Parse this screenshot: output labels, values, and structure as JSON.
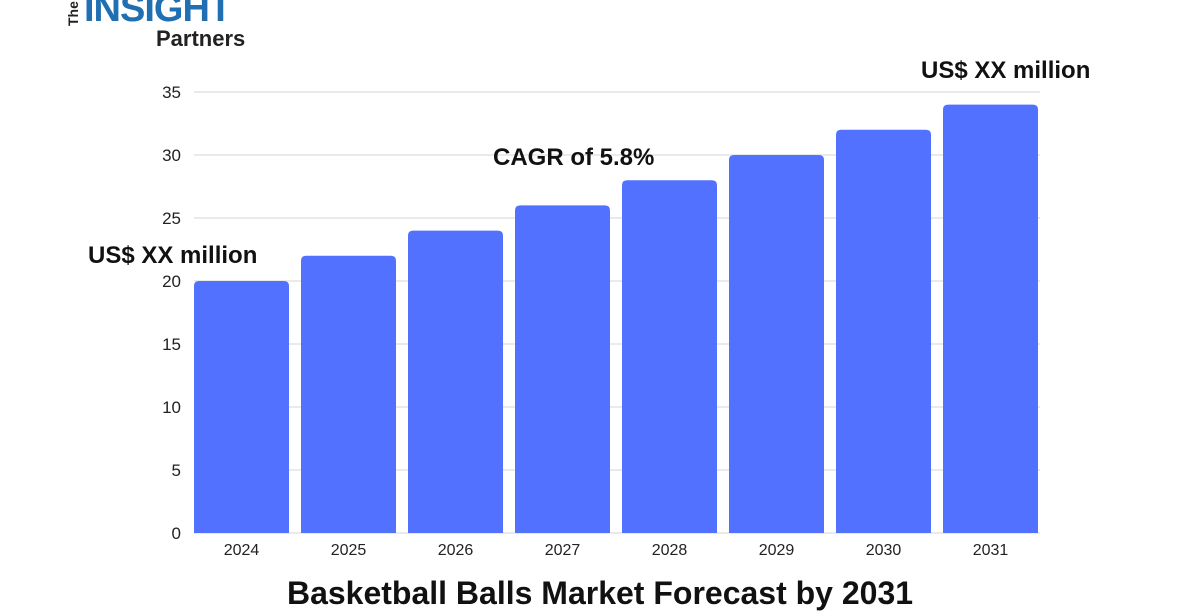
{
  "logo": {
    "the": "The",
    "insight": "INSIGHT",
    "partners": "Partners"
  },
  "chart_data": {
    "type": "bar",
    "title": "Basketball Balls Market Forecast by 2031",
    "categories": [
      "2024",
      "2025",
      "2026",
      "2027",
      "2028",
      "2029",
      "2030",
      "2031"
    ],
    "values": [
      20,
      22,
      24,
      26,
      28,
      30,
      32,
      34
    ],
    "ylim": [
      0,
      35
    ],
    "yticks": [
      "0",
      "5",
      "10",
      "15",
      "20",
      "25",
      "30",
      "35"
    ],
    "grid": true,
    "bar_color": "#5271ff",
    "annotations": {
      "start": "US$ XX million",
      "cagr": "CAGR of 5.8%",
      "end": "US$ XX million"
    }
  }
}
